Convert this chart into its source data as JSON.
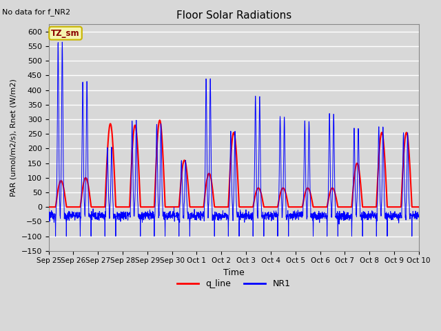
{
  "title": "Floor Solar Radiations",
  "xlabel": "Time",
  "ylabel": "PAR (umol/m2/s), Rnet (W/m2)",
  "ylim": [
    -150,
    625
  ],
  "yticks": [
    -150,
    -100,
    -50,
    0,
    50,
    100,
    150,
    200,
    250,
    300,
    350,
    400,
    450,
    500,
    550,
    600
  ],
  "no_data_text": "No data for f_NR2",
  "annotation_text": "TZ_sm",
  "annotation_box_facecolor": "#f5f5b0",
  "annotation_box_edgecolor": "#c8b400",
  "background_color": "#d8d8d8",
  "grid_color": "#ffffff",
  "q_line_color": "red",
  "nr1_color": "blue",
  "legend_labels": [
    "q_line",
    "NR1"
  ],
  "num_days": 15,
  "xtick_labels": [
    "Sep 25",
    "Sep 26",
    "Sep 27",
    "Sep 28",
    "Sep 29",
    "Sep 30",
    "Oct 1",
    "Oct 2",
    "Oct 3",
    "Oct 4",
    "Oct 5",
    "Oct 6",
    "Oct 7",
    "Oct 8",
    "Oct 9",
    "Oct 10"
  ],
  "q_day_peaks": [
    90,
    100,
    285,
    280,
    297,
    160,
    115,
    255,
    65,
    65,
    65,
    65,
    150,
    255,
    255
  ],
  "nr1_day_peaks": [
    565,
    430,
    205,
    297,
    285,
    160,
    440,
    260,
    380,
    310,
    295,
    320,
    270,
    275,
    255
  ],
  "nr1_night_base": -30,
  "nr1_spike_depth": -100
}
